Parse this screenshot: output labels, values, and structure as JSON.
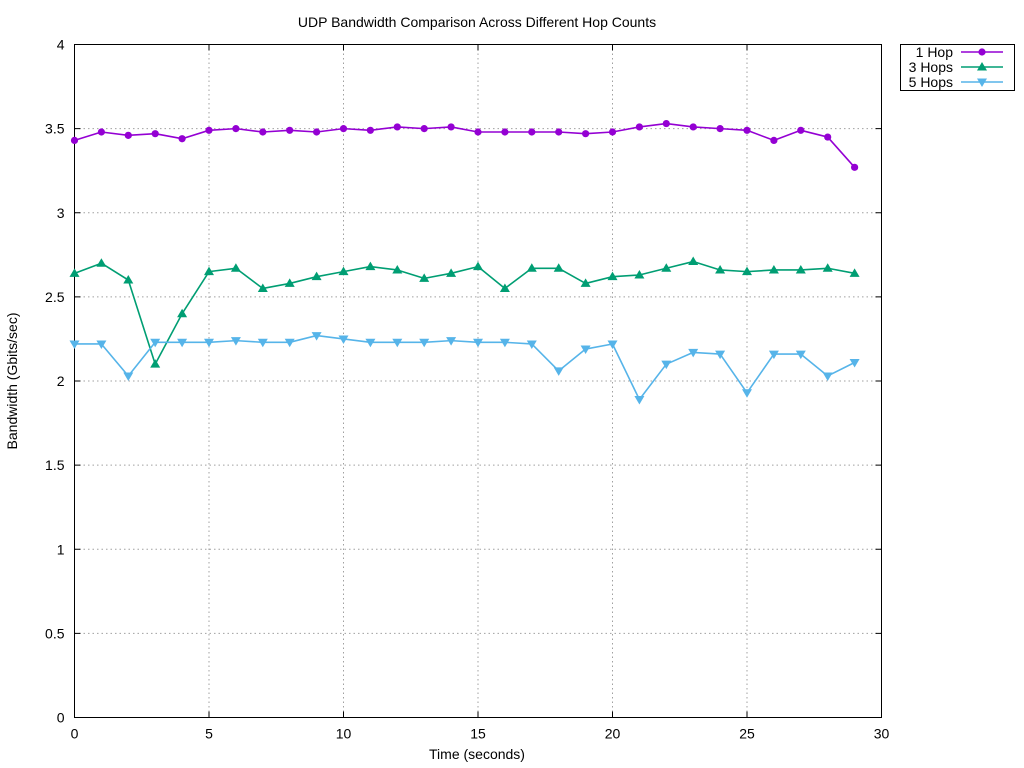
{
  "chart_data": {
    "type": "line",
    "title": "UDP Bandwidth Comparison Across Different Hop Counts",
    "xlabel": "Time (seconds)",
    "ylabel": "Bandwidth (Gbits/sec)",
    "xlim": [
      0,
      30
    ],
    "ylim": [
      0,
      4
    ],
    "xticks": [
      "0",
      "5",
      "10",
      "15",
      "20",
      "25",
      "30"
    ],
    "yticks": [
      "0",
      "0.5",
      "1",
      "1.5",
      "2",
      "2.5",
      "3",
      "3.5",
      "4"
    ],
    "grid": true,
    "legend_position": "outside-top-right",
    "x": [
      0,
      1,
      2,
      3,
      4,
      5,
      6,
      7,
      8,
      9,
      10,
      11,
      12,
      13,
      14,
      15,
      16,
      17,
      18,
      19,
      20,
      21,
      22,
      23,
      24,
      25,
      26,
      27,
      28,
      29
    ],
    "series": [
      {
        "name": "1 Hop",
        "color": "#9400d3",
        "marker": "circle",
        "values": [
          3.43,
          3.48,
          3.46,
          3.47,
          3.44,
          3.49,
          3.5,
          3.48,
          3.49,
          3.48,
          3.5,
          3.49,
          3.51,
          3.5,
          3.51,
          3.48,
          3.48,
          3.48,
          3.48,
          3.47,
          3.48,
          3.51,
          3.53,
          3.51,
          3.5,
          3.49,
          3.43,
          3.49,
          3.45,
          3.27
        ]
      },
      {
        "name": "3 Hops",
        "color": "#009e73",
        "marker": "triangle-up",
        "values": [
          2.64,
          2.7,
          2.6,
          2.1,
          2.4,
          2.65,
          2.67,
          2.55,
          2.58,
          2.62,
          2.65,
          2.68,
          2.66,
          2.61,
          2.64,
          2.68,
          2.55,
          2.67,
          2.67,
          2.58,
          2.62,
          2.63,
          2.67,
          2.71,
          2.66,
          2.65,
          2.66,
          2.66,
          2.67,
          2.64
        ]
      },
      {
        "name": "5 Hops",
        "color": "#56b4e9",
        "marker": "triangle-down",
        "values": [
          2.22,
          2.22,
          2.03,
          2.23,
          2.23,
          2.23,
          2.24,
          2.23,
          2.23,
          2.27,
          2.25,
          2.23,
          2.23,
          2.23,
          2.24,
          2.23,
          2.23,
          2.22,
          2.06,
          2.19,
          2.22,
          1.89,
          2.1,
          2.17,
          2.16,
          1.93,
          2.16,
          2.16,
          2.03,
          2.11
        ]
      }
    ]
  }
}
